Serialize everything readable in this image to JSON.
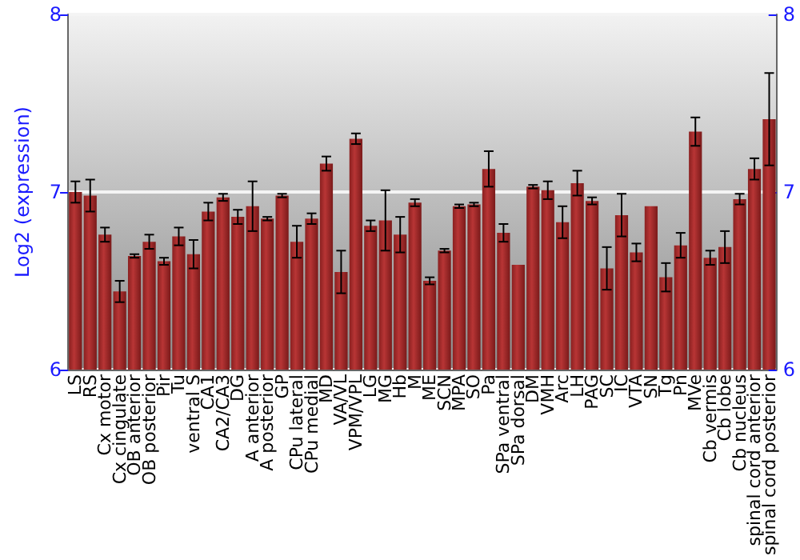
{
  "chart_data": {
    "type": "bar",
    "ylabel": "Log2 (expression)",
    "categories": [
      "LS",
      "RS",
      "Cx motor",
      "Cx cingulate",
      "OB anterior",
      "OB posterior",
      "Pir",
      "Tu",
      "ventral S",
      "CA1",
      "CA2/CA3",
      "DG",
      "A anterior",
      "A posterior",
      "GP",
      "CPu lateral",
      "CPu medial",
      "MD",
      "VA/VL",
      "VPM/VPL",
      "LG",
      "MG",
      "Hb",
      "M",
      "ME",
      "SCN",
      "MPA",
      "SO",
      "Pa",
      "SPa ventral",
      "SPa dorsal",
      "DM",
      "VMH",
      "Arc",
      "LH",
      "PAG",
      "SC",
      "IC",
      "VTA",
      "SN",
      "Tg",
      "Pn",
      "MVe",
      "Cb vermis",
      "Cb lobe",
      "Cb nucleus",
      "spinal cord anterior",
      "spinal cord posterior"
    ],
    "values": [
      7.0,
      6.98,
      6.76,
      6.44,
      6.64,
      6.72,
      6.61,
      6.75,
      6.65,
      6.89,
      6.97,
      6.86,
      6.92,
      6.85,
      6.98,
      6.72,
      6.85,
      7.16,
      6.55,
      7.3,
      6.81,
      6.84,
      6.76,
      6.94,
      6.5,
      6.67,
      6.92,
      6.93,
      7.13,
      6.77,
      6.59,
      7.03,
      7.01,
      6.83,
      7.05,
      6.95,
      6.57,
      6.87,
      6.66,
      6.92,
      6.52,
      6.7,
      7.34,
      6.63,
      6.69,
      6.96,
      7.13,
      7.41
    ],
    "errors": [
      0.06,
      0.09,
      0.04,
      0.06,
      0.01,
      0.04,
      0.02,
      0.05,
      0.08,
      0.05,
      0.02,
      0.04,
      0.14,
      0.01,
      0.01,
      0.09,
      0.03,
      0.04,
      0.12,
      0.03,
      0.03,
      0.17,
      0.1,
      0.02,
      0.02,
      0.01,
      0.01,
      0.01,
      0.1,
      0.05,
      null,
      0.01,
      0.05,
      0.09,
      0.07,
      0.02,
      0.12,
      0.12,
      0.05,
      null,
      0.08,
      0.07,
      0.08,
      0.04,
      0.09,
      0.03,
      0.06,
      0.26
    ],
    "color": "#b83535",
    "ylim": [
      6,
      8
    ],
    "yticks": [
      6,
      7,
      8
    ],
    "y2lim": [
      6,
      8
    ],
    "y2ticks": [
      6,
      7,
      8
    ],
    "grid": "y"
  }
}
